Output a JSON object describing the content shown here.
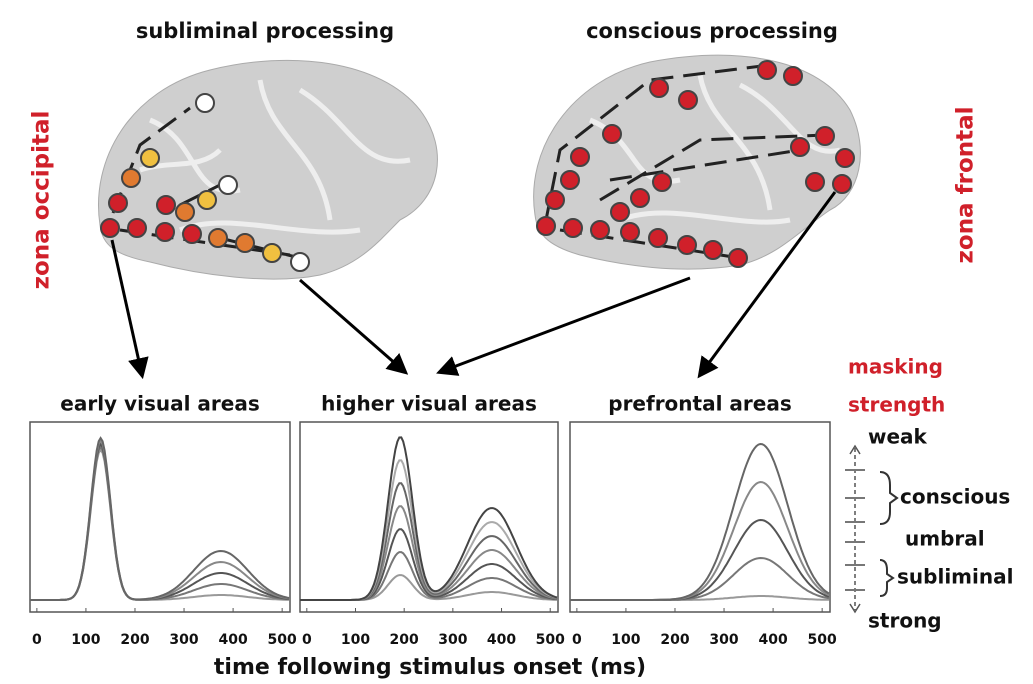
{
  "titles": {
    "left": "subliminal processing",
    "right": "conscious processing"
  },
  "side_labels": {
    "left": "zona occipital",
    "right": "zona frontal"
  },
  "panels": [
    {
      "title": "early visual areas",
      "xlim": [
        -14,
        516
      ],
      "xticks": [
        0,
        100,
        200,
        300,
        400,
        500
      ]
    },
    {
      "title": "higher visual areas",
      "xlim": [
        -14,
        516
      ],
      "xticks": [
        0,
        100,
        200,
        300,
        400,
        500
      ]
    },
    {
      "title": "prefrontal areas",
      "xlim": [
        -14,
        516
      ],
      "xticks": [
        0,
        100,
        200,
        300,
        400,
        500
      ]
    }
  ],
  "x_axis_label": "time following stimulus onset (ms)",
  "legend": {
    "title": [
      "masking",
      "strength"
    ],
    "top": "weak",
    "bottom": "strong",
    "labels": [
      "conscious",
      "umbral",
      "subliminal"
    ]
  }
}
